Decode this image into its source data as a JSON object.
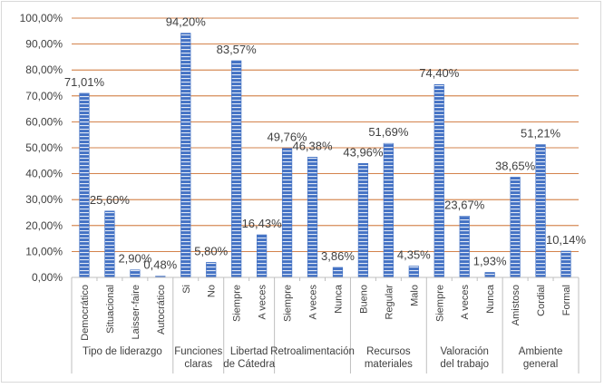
{
  "chart_data": {
    "type": "bar",
    "title": "",
    "xlabel": "",
    "ylabel": "",
    "ylim": [
      0,
      100
    ],
    "y_ticks": [
      "0,00%",
      "10,00%",
      "20,00%",
      "30,00%",
      "40,00%",
      "50,00%",
      "60,00%",
      "70,00%",
      "80,00%",
      "90,00%",
      "100,00%"
    ],
    "grid": true,
    "legend": "none",
    "bar_color": "#4472c4",
    "grid_color": "#c55a11",
    "groups": [
      {
        "name": "Tipo de liderazgo",
        "categories": [
          "Democrático",
          "Situacional",
          "Laisser-faire",
          "Autocrático"
        ],
        "values": [
          71.01,
          25.6,
          2.9,
          0.48
        ],
        "labels": [
          "71,01%",
          "25,60%",
          "2,90%",
          "0,48%"
        ]
      },
      {
        "name": "Funciones claras",
        "categories": [
          "Si",
          "No"
        ],
        "values": [
          94.2,
          5.8
        ],
        "labels": [
          "94,20%",
          "5,80%"
        ]
      },
      {
        "name": "Libertad de Cátedra",
        "categories": [
          "Siempre",
          "A veces"
        ],
        "values": [
          83.57,
          16.43
        ],
        "labels": [
          "83,57%",
          "16,43%"
        ]
      },
      {
        "name": "Retroalimentación",
        "categories": [
          "Siempre",
          "A veces",
          "Nunca"
        ],
        "values": [
          49.76,
          46.38,
          3.86
        ],
        "labels": [
          "49,76%",
          "46,38%",
          "3,86%"
        ]
      },
      {
        "name": "Recursos materiales",
        "categories": [
          "Bueno",
          "Regular",
          "Malo"
        ],
        "values": [
          43.96,
          51.69,
          4.35
        ],
        "labels": [
          "43,96%",
          "51,69%",
          "4,35%"
        ]
      },
      {
        "name": "Valoración del trabajo",
        "categories": [
          "Siempre",
          "A veces",
          "Nunca"
        ],
        "values": [
          74.4,
          23.67,
          1.93
        ],
        "labels": [
          "74,40%",
          "23,67%",
          "1,93%"
        ]
      },
      {
        "name": "Ambiente general",
        "categories": [
          "Amistoso",
          "Cordial",
          "Formal"
        ],
        "values": [
          38.65,
          51.21,
          10.14
        ],
        "labels": [
          "38,65%",
          "51,21%",
          "10,14%"
        ]
      }
    ]
  }
}
